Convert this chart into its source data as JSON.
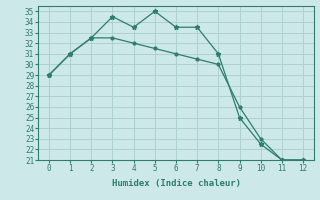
{
  "xlabel": "Humidex (Indice chaleur)",
  "x": [
    0,
    1,
    2,
    3,
    4,
    5,
    6,
    7,
    8,
    9,
    10,
    11,
    12
  ],
  "line1": [
    29,
    31,
    32.5,
    34.5,
    33.5,
    35,
    33.5,
    33.5,
    31,
    25,
    22.5,
    21,
    21
  ],
  "line2": [
    29,
    31,
    32.5,
    32.5,
    32,
    31.5,
    31,
    30.5,
    30,
    26,
    23,
    21,
    21
  ],
  "ylim": [
    21,
    35.5
  ],
  "xlim": [
    -0.5,
    12.5
  ],
  "yticks": [
    21,
    22,
    23,
    24,
    25,
    26,
    27,
    28,
    29,
    30,
    31,
    32,
    33,
    34,
    35
  ],
  "xticks": [
    0,
    1,
    2,
    3,
    4,
    5,
    6,
    7,
    8,
    9,
    10,
    11,
    12
  ],
  "line_color": "#2e7d6e",
  "bg_color": "#cce8e8",
  "grid_color": "#afd0d0"
}
